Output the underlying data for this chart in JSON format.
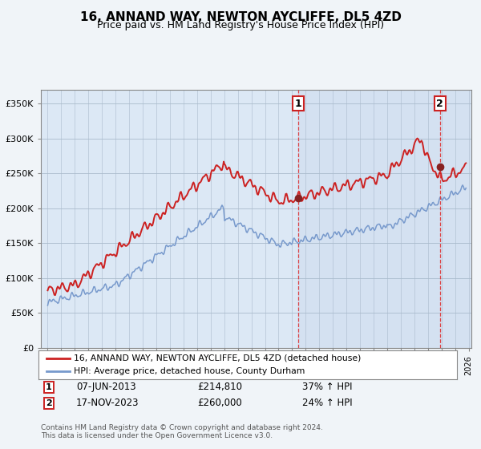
{
  "title": "16, ANNAND WAY, NEWTON AYCLIFFE, DL5 4ZD",
  "subtitle": "Price paid vs. HM Land Registry's House Price Index (HPI)",
  "ylabel_ticks": [
    "£0",
    "£50K",
    "£100K",
    "£150K",
    "£200K",
    "£250K",
    "£300K",
    "£350K"
  ],
  "ytick_values": [
    0,
    50000,
    100000,
    150000,
    200000,
    250000,
    300000,
    350000
  ],
  "ylim": [
    0,
    370000
  ],
  "xlim_start": 1994.5,
  "xlim_end": 2026.2,
  "hpi_color": "#7799cc",
  "price_color": "#cc2222",
  "dashed_line_color": "#dd3333",
  "sale_1_x": 2013.43,
  "sale_1_price": 214810,
  "sale_2_x": 2023.88,
  "sale_2_price": 260000,
  "legend_line1": "16, ANNAND WAY, NEWTON AYCLIFFE, DL5 4ZD (detached house)",
  "legend_line2": "HPI: Average price, detached house, County Durham",
  "sale1_date": "07-JUN-2013",
  "sale1_price_str": "£214,810",
  "sale1_pct": "37% ↑ HPI",
  "sale2_date": "17-NOV-2023",
  "sale2_price_str": "£260,000",
  "sale2_pct": "24% ↑ HPI",
  "footer1": "Contains HM Land Registry data © Crown copyright and database right 2024.",
  "footer2": "This data is licensed under the Open Government Licence v3.0.",
  "plot_bg_color": "#dce8f5",
  "fig_bg_color": "#f0f4f8",
  "shade_right_color": "#cddcee"
}
